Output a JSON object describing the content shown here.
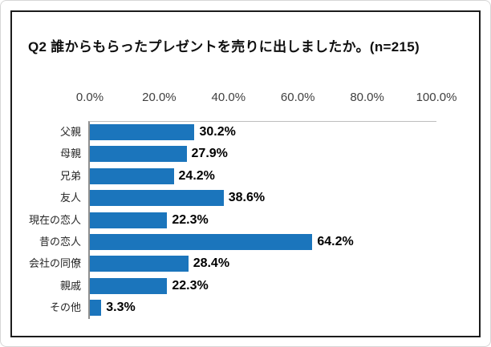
{
  "chart_data": {
    "type": "bar",
    "orientation": "horizontal",
    "title": "Q2 誰からもらったプレゼントを売りに出しましたか。(n=215)",
    "n": 215,
    "categories": [
      "父親",
      "母親",
      "兄弟",
      "友人",
      "現在の恋人",
      "昔の恋人",
      "会社の同僚",
      "親戚",
      "その他"
    ],
    "values": [
      30.2,
      27.9,
      24.2,
      38.6,
      22.3,
      64.2,
      28.4,
      22.3,
      3.3
    ],
    "value_labels": [
      "30.2%",
      "27.9%",
      "24.2%",
      "38.6%",
      "22.3%",
      "64.2%",
      "28.4%",
      "22.3%",
      "3.3%"
    ],
    "x_ticks": [
      "0.0%",
      "20.0%",
      "40.0%",
      "60.0%",
      "80.0%",
      "100.0%"
    ],
    "xlim": [
      0,
      100
    ],
    "grid": false,
    "legend": false,
    "bar_color": "#1b75bc"
  },
  "colors": {
    "bar": "#1b75bc",
    "box_border": "#1c1c1c",
    "axis_line": "#8f8f8f",
    "plot_top_border": "#bdbdbd",
    "tick_label": "#3f3f3f",
    "category_label": "#262626",
    "value_label": "#000000",
    "background": "#ffffff"
  }
}
